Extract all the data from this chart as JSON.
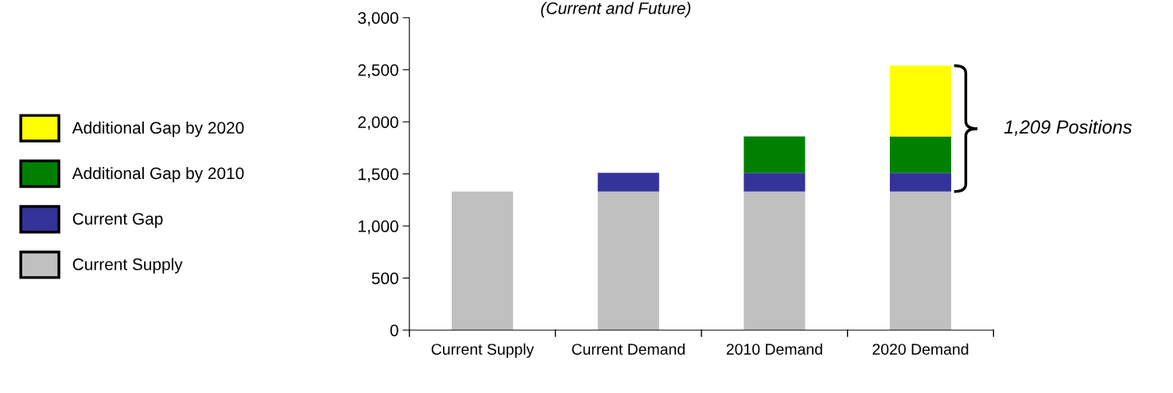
{
  "chart_data": {
    "type": "bar",
    "stacked": true,
    "subtitle": "(Current and Future)",
    "categories": [
      "Current Supply",
      "Current Demand",
      "2010 Demand",
      "2020 Demand"
    ],
    "series": [
      {
        "name": "Current Supply",
        "color": "#c0c0c0",
        "values": [
          1330,
          1330,
          1330,
          1330
        ]
      },
      {
        "name": "Current Gap",
        "color": "#333399",
        "values": [
          null,
          180,
          180,
          180
        ]
      },
      {
        "name": "Additional Gap by 2010",
        "color": "#008000",
        "values": [
          null,
          null,
          350,
          350
        ]
      },
      {
        "name": "Additional Gap by 2020",
        "color": "#ffff00",
        "values": [
          null,
          null,
          null,
          679
        ]
      }
    ],
    "ylim": [
      0,
      3000
    ],
    "yticks": [
      {
        "value": 0,
        "label": "0"
      },
      {
        "value": 500,
        "label": "500"
      },
      {
        "value": 1000,
        "label": "1,000"
      },
      {
        "value": 1500,
        "label": "1,500"
      },
      {
        "value": 2000,
        "label": "2,000"
      },
      {
        "value": 2500,
        "label": "2,500"
      },
      {
        "value": 3000,
        "label": "3,000"
      }
    ],
    "grid": false,
    "legend": "left",
    "annotations": [
      "1,209 Positions"
    ]
  }
}
